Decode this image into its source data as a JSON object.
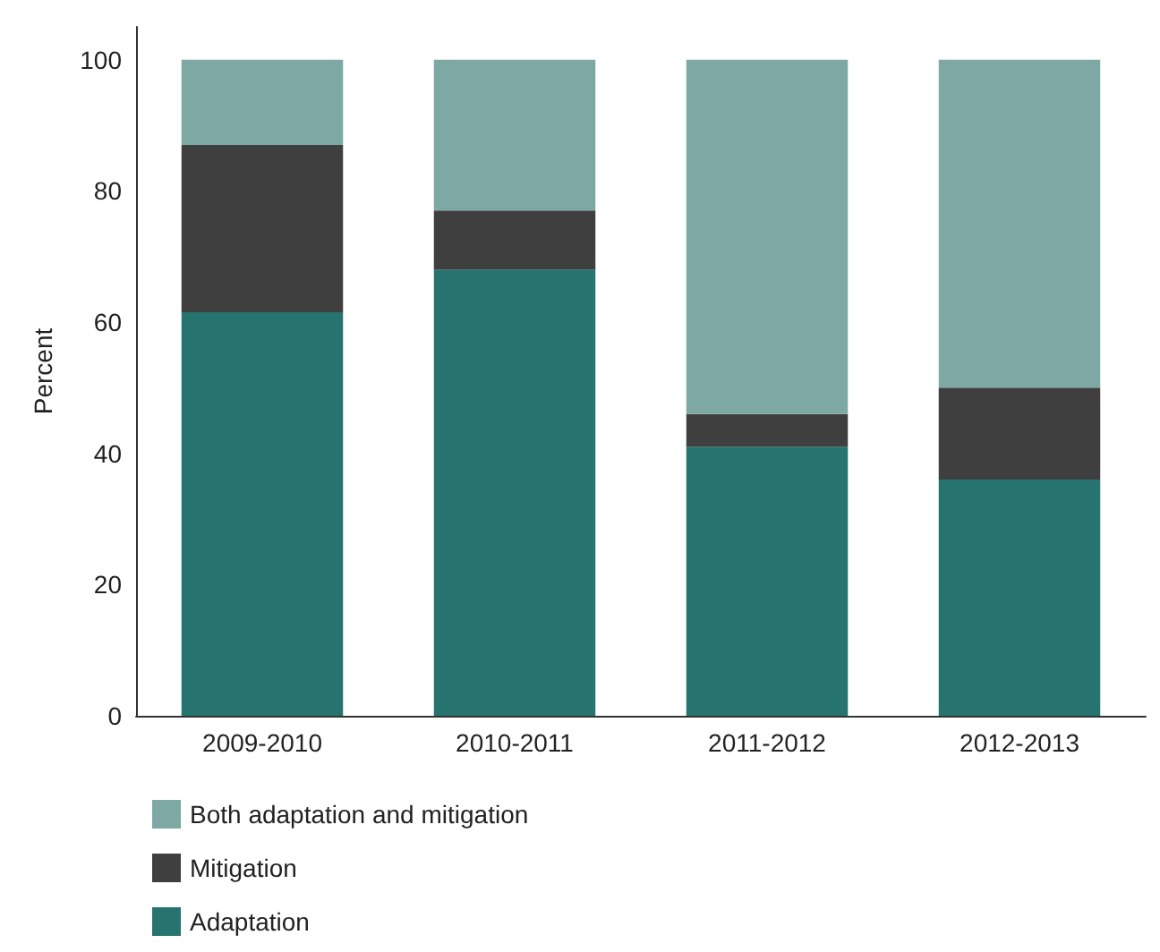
{
  "chart_data": {
    "type": "bar",
    "stacked": true,
    "ylabel": "Percent",
    "categories": [
      "2009-2010",
      "2010-2011",
      "2011-2012",
      "2012-2013"
    ],
    "series": [
      {
        "name": "Adaptation",
        "color": "#267370",
        "values": [
          61.5,
          68,
          41,
          36
        ]
      },
      {
        "name": "Mitigation",
        "color": "#3f3f3f",
        "values": [
          25.5,
          9,
          5,
          14
        ]
      },
      {
        "name": "Both adaptation and mitigation",
        "color": "#7ea8a3",
        "values": [
          13,
          23,
          54,
          50
        ]
      }
    ],
    "ylim": [
      0,
      105
    ],
    "yticks": [
      0,
      20,
      40,
      60,
      80,
      100
    ],
    "grid": false,
    "legend": "bottom left"
  }
}
